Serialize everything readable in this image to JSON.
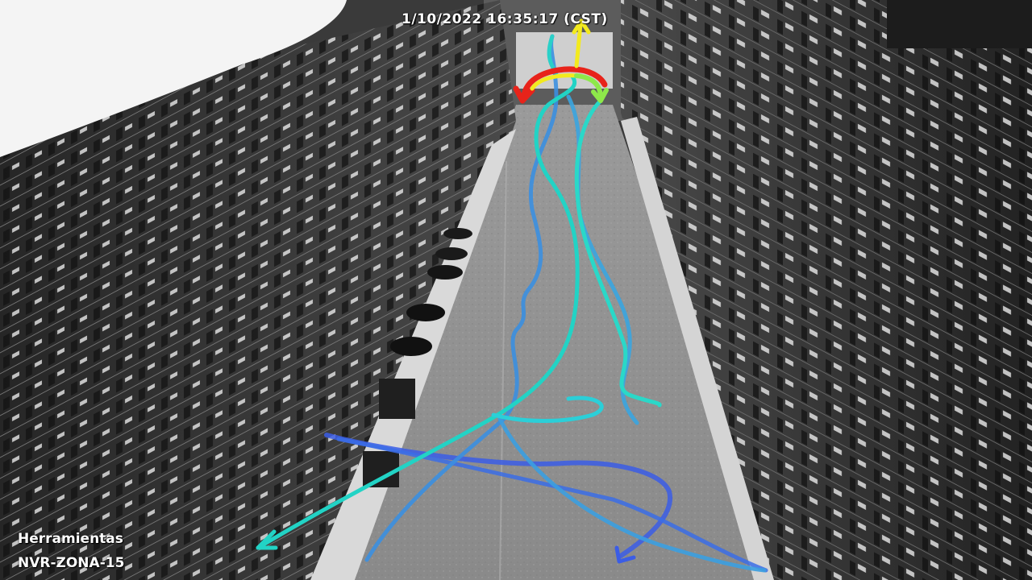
{
  "overlay": {
    "timestamp": "1/10/2022 16:35:17 (CST)",
    "area_name": "Herramientas",
    "camera_id": "NVR-ZONA-15"
  },
  "colors": {
    "path_teal": "#22d3c5",
    "path_blue": "#3b8fe0",
    "path_deep_blue": "#3b5de6",
    "arrow_red": "#e8231a",
    "arrow_yellow": "#f3ea1e",
    "arrow_green": "#8ee84a"
  }
}
